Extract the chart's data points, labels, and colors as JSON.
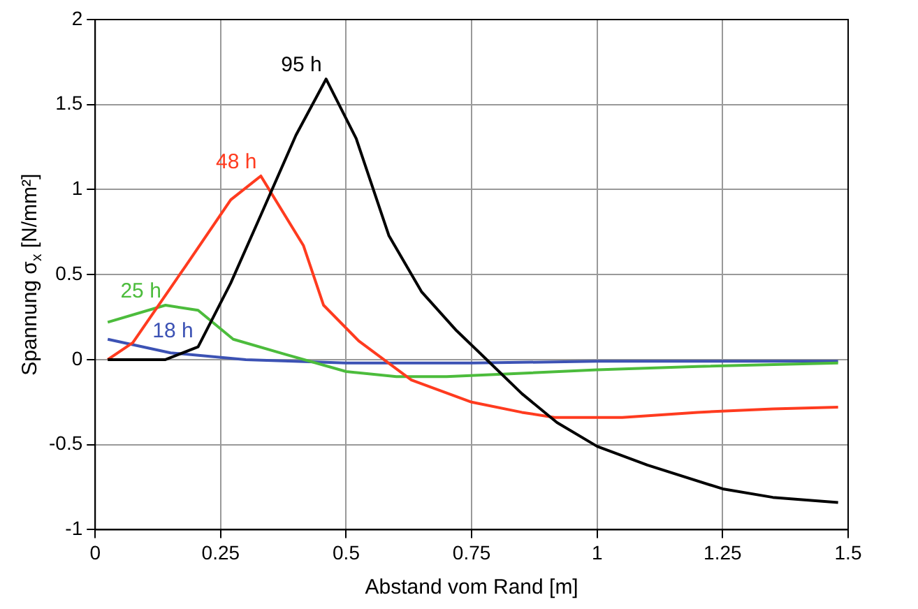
{
  "chart_data": {
    "type": "line",
    "xlabel": "Abstand vom Rand [m]",
    "ylabel": "Spannung σ$_{x}$ [N/mm²]",
    "xlim": [
      0,
      1.5
    ],
    "xticks": [
      0,
      0.25,
      0.5,
      0.75,
      1,
      1.25,
      1.5
    ],
    "ylim": [
      -1,
      2
    ],
    "yticks": [
      -1,
      -0.5,
      0,
      0.5,
      1,
      1.5,
      2
    ],
    "grid": true,
    "legend": false,
    "marker": "none",
    "series": [
      {
        "name": "95 h",
        "color": "#000000",
        "x": [
          0.025,
          0.14,
          0.205,
          0.27,
          0.33,
          0.4,
          0.46,
          0.52,
          0.585,
          0.65,
          0.72,
          0.78,
          0.85,
          0.92,
          1.0,
          1.1,
          1.25,
          1.35,
          1.48
        ],
        "values": [
          0,
          0,
          0.075,
          0.45,
          0.85,
          1.32,
          1.65,
          1.3,
          0.73,
          0.4,
          0.17,
          0,
          -0.2,
          -0.37,
          -0.51,
          -0.62,
          -0.76,
          -0.81,
          -0.84
        ]
      },
      {
        "name": "48 h",
        "color": "#ff3b1f",
        "x": [
          0.025,
          0.075,
          0.18,
          0.27,
          0.33,
          0.415,
          0.455,
          0.525,
          0.63,
          0.75,
          0.85,
          0.915,
          1.05,
          1.2,
          1.35,
          1.48
        ],
        "values": [
          0,
          0.1,
          0.55,
          0.94,
          1.08,
          0.67,
          0.32,
          0.11,
          -0.12,
          -0.25,
          -0.31,
          -0.34,
          -0.34,
          -0.31,
          -0.29,
          -0.28
        ]
      },
      {
        "name": "25 h",
        "color": "#4cbc3c",
        "x": [
          0.025,
          0.14,
          0.205,
          0.275,
          0.38,
          0.5,
          0.6,
          0.7,
          0.85,
          1.0,
          1.2,
          1.48
        ],
        "values": [
          0.22,
          0.32,
          0.29,
          0.12,
          0.03,
          -0.07,
          -0.1,
          -0.1,
          -0.08,
          -0.06,
          -0.04,
          -0.02
        ]
      },
      {
        "name": "18 h",
        "color": "#3c52b4",
        "x": [
          0.025,
          0.15,
          0.3,
          0.5,
          0.75,
          1.0,
          1.48
        ],
        "values": [
          0.12,
          0.04,
          0,
          -0.02,
          -0.02,
          -0.01,
          -0.01
        ]
      }
    ]
  }
}
